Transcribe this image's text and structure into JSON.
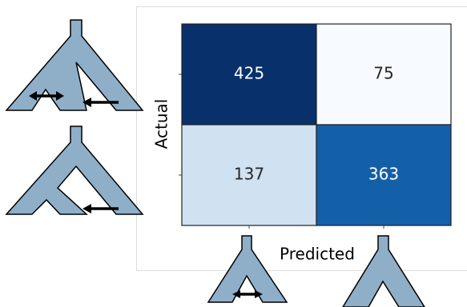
{
  "chart_data": {
    "type": "heatmap",
    "x_label": "Predicted",
    "y_label": "Actual",
    "x_categories": [
      null,
      null
    ],
    "y_categories": [
      null,
      null
    ],
    "values": [
      [
        425,
        75
      ],
      [
        137,
        363
      ]
    ],
    "colors": [
      [
        "#08306b",
        "#f7fbff"
      ],
      [
        "#d0e1f2",
        "#1460a8"
      ]
    ]
  }
}
